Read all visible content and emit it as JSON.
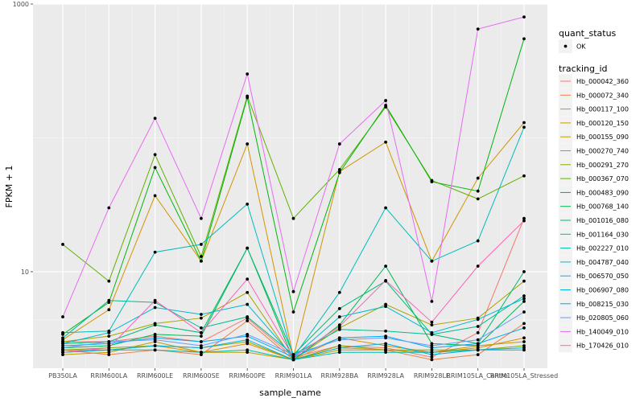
{
  "chart_data": {
    "type": "line",
    "xlabel": "sample_name",
    "ylabel": "FPKM + 1",
    "y_scale": "log10",
    "ylim": [
      1.9,
      1000
    ],
    "grid": true,
    "background": "#ebebeb",
    "legend_placement": "right",
    "categories": [
      "PB350LA",
      "RRIM600LA",
      "RRIM600LE",
      "RRIM600SE",
      "RRIM600PE",
      "RRIM901LA",
      "RRIM928BA",
      "RRIM928LA",
      "RRIM928LE",
      "RRIM105LA_Control",
      "RRIM105LA_Stressed"
    ],
    "y_ticks": [
      10,
      1000
    ],
    "y_tick_labels": [
      "10",
      "1000"
    ],
    "point_color": "#000000",
    "shape_legend": {
      "title": "quant_status",
      "entries": [
        "OK"
      ]
    },
    "color_legend_title": "tracking_id",
    "series": [
      {
        "name": "Hb_000042_360",
        "color": "#F8766D",
        "values": [
          3.0,
          3.0,
          3.3,
          3.0,
          4.5,
          2.3,
          2.8,
          2.7,
          2.3,
          3.5,
          25
        ]
      },
      {
        "name": "Hb_000072_340",
        "color": "#EF7F48",
        "values": [
          2.6,
          2.4,
          2.6,
          2.4,
          4.3,
          2.2,
          2.7,
          2.6,
          2.2,
          2.4,
          4.1
        ]
      },
      {
        "name": "Hb_000117_100",
        "color": "#E28A00",
        "values": [
          2.6,
          2.6,
          2.8,
          2.5,
          2.9,
          2.2,
          3.2,
          2.8,
          2.5,
          2.7,
          3.2
        ]
      },
      {
        "name": "Hb_000120_150",
        "color": "#D29400",
        "values": [
          3.1,
          5.2,
          37,
          12,
          90,
          2.3,
          56,
          93,
          12,
          50,
          130
        ]
      },
      {
        "name": "Hb_000155_090",
        "color": "#BE9C00",
        "values": [
          2.4,
          2.5,
          3.0,
          2.5,
          2.5,
          2.2,
          2.6,
          2.6,
          2.5,
          2.8,
          3.0
        ]
      },
      {
        "name": "Hb_000270_740",
        "color": "#A8A400",
        "values": [
          3.0,
          3.3,
          4.1,
          4.5,
          7.0,
          2.2,
          3.8,
          5.7,
          4.0,
          4.5,
          8.5
        ]
      },
      {
        "name": "Hb_000291_270",
        "color": "#8BAB00",
        "values": [
          2.6,
          2.7,
          2.8,
          2.7,
          3.0,
          2.2,
          2.8,
          2.6,
          2.6,
          2.6,
          2.8
        ]
      },
      {
        "name": "Hb_000367_070",
        "color": "#62B100",
        "values": [
          16,
          8.5,
          75,
          13,
          205,
          25,
          58,
          170,
          48,
          35,
          52
        ]
      },
      {
        "name": "Hb_000483_090",
        "color": "#00B50D",
        "values": [
          3.4,
          5.9,
          60,
          12,
          200,
          5.0,
          55,
          175,
          47,
          40,
          550
        ]
      },
      {
        "name": "Hb_000768_140",
        "color": "#00B850",
        "values": [
          2.7,
          2.8,
          3.4,
          3.3,
          15,
          2.2,
          4.0,
          11,
          2.9,
          2.8,
          6.0
        ]
      },
      {
        "name": "Hb_001016_080",
        "color": "#00BB72",
        "values": [
          2.9,
          3.0,
          4.0,
          3.5,
          15,
          2.4,
          5.3,
          8.5,
          3.4,
          2.9,
          10
        ]
      },
      {
        "name": "Hb_001164_030",
        "color": "#00BC8D",
        "values": [
          3.2,
          6.1,
          5.9,
          3.8,
          4.6,
          2.4,
          3.7,
          3.6,
          3.4,
          3.9,
          6.6
        ]
      },
      {
        "name": "Hb_002227_010",
        "color": "#00BDA5",
        "values": [
          2.5,
          2.6,
          2.6,
          2.5,
          2.6,
          2.2,
          2.5,
          2.5,
          2.5,
          2.6,
          2.6
        ]
      },
      {
        "name": "Hb_004787_040",
        "color": "#00BCBA",
        "values": [
          3.5,
          3.6,
          14,
          16,
          32,
          2.3,
          7.0,
          30,
          12,
          17,
          120
        ]
      },
      {
        "name": "Hb_006570_050",
        "color": "#00B8CE",
        "values": [
          2.9,
          3.5,
          5.4,
          4.8,
          5.7,
          2.3,
          4.6,
          5.5,
          3.5,
          4.4,
          6.3
        ]
      },
      {
        "name": "Hb_006907_080",
        "color": "#00B2E0",
        "values": [
          2.5,
          2.6,
          2.8,
          2.7,
          3.1,
          2.2,
          2.7,
          2.9,
          2.4,
          2.6,
          2.7
        ]
      },
      {
        "name": "Hb_008215_030",
        "color": "#00A9EF",
        "values": [
          2.8,
          2.9,
          3.2,
          3.0,
          3.3,
          2.3,
          3.2,
          3.3,
          2.7,
          2.9,
          3.8
        ]
      },
      {
        "name": "Hb_020805_060",
        "color": "#619CFF",
        "values": [
          2.7,
          3.0,
          3.1,
          2.8,
          3.4,
          2.4,
          3.1,
          3.2,
          2.8,
          3.1,
          5.0
        ]
      },
      {
        "name": "Hb_140049_010",
        "color": "#E76BF3",
        "values": [
          4.6,
          30,
          140,
          25,
          300,
          7.1,
          90,
          190,
          6.0,
          650,
          800
        ]
      },
      {
        "name": "Hb_170426_010",
        "color": "#FF62BC",
        "values": [
          2.5,
          2.7,
          6.1,
          3.5,
          8.8,
          2.3,
          3.9,
          8.6,
          4.2,
          11,
          24
        ]
      }
    ]
  }
}
